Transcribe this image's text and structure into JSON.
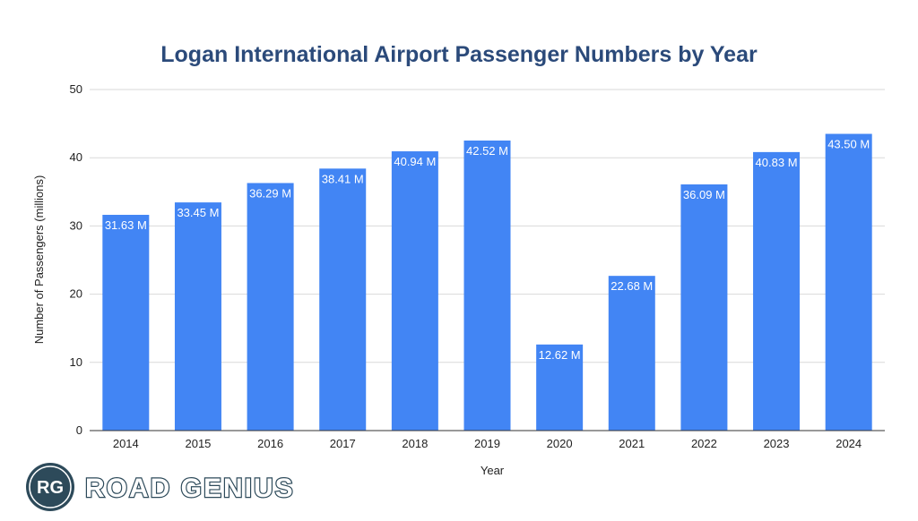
{
  "chart_data": {
    "type": "bar",
    "title": "Logan International Airport Passenger Numbers by Year",
    "xlabel": "Year",
    "ylabel": "Number of Passengers (millions)",
    "ylim": [
      0,
      50
    ],
    "yticks": [
      0,
      10,
      20,
      30,
      40,
      50
    ],
    "grid": true,
    "categories": [
      "2014",
      "2015",
      "2016",
      "2017",
      "2018",
      "2019",
      "2020",
      "2021",
      "2022",
      "2023",
      "2024"
    ],
    "values": [
      31.63,
      33.45,
      36.29,
      38.41,
      40.94,
      42.52,
      12.62,
      22.68,
      36.09,
      40.83,
      43.5
    ],
    "data_labels": [
      "31.63 M",
      "33.45 M",
      "36.29 M",
      "38.41 M",
      "40.94 M",
      "42.52 M",
      "12.62 M",
      "22.68 M",
      "36.09 M",
      "40.83 M",
      "43.50 M"
    ],
    "colors": {
      "bar": "#4285f4",
      "title": "#2b4a7a"
    }
  },
  "logo": {
    "monogram": "RG",
    "text": "ROAD GENIUS",
    "color": "#2d4a5a"
  }
}
